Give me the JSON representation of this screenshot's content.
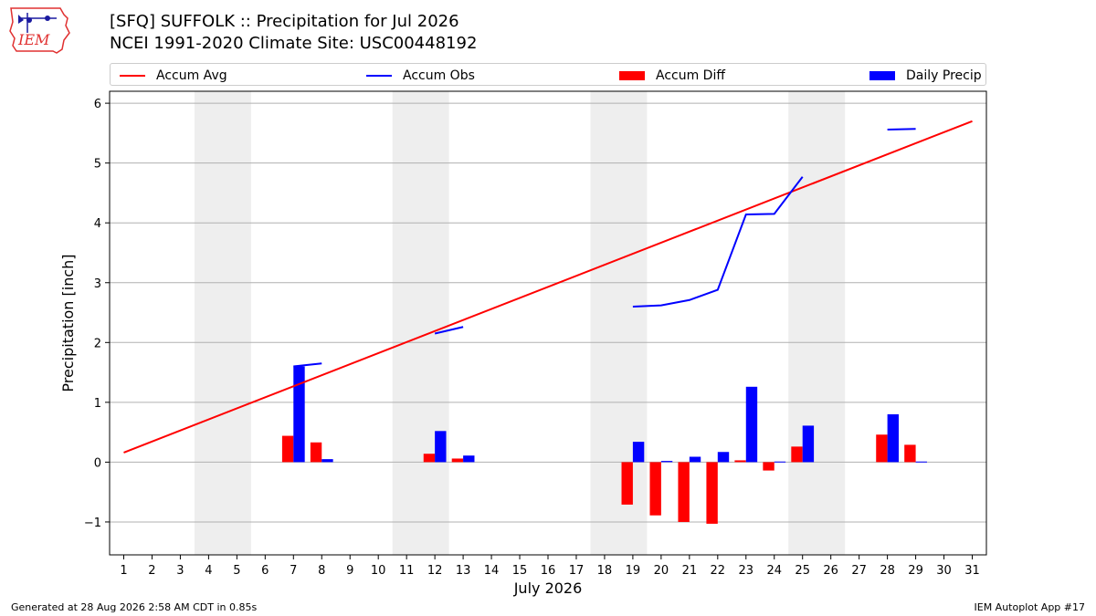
{
  "header": {
    "title_line1": "[SFQ] SUFFOLK :: Precipitation for Jul 2026",
    "title_line2": "NCEI 1991-2020 Climate Site: USC00448192",
    "logo_text": "IEM"
  },
  "footer": {
    "generated": "Generated at 28 Aug 2026 2:58 AM CDT in 0.85s",
    "app": "IEM Autoplot App #17"
  },
  "colors": {
    "avg": "#ff0000",
    "obs": "#0000ff",
    "diff": "#ff0000",
    "daily": "#0000ff",
    "weekend_shade": "#eeeeee",
    "grid": "#b0b0b0"
  },
  "chart_data": {
    "type": "bar",
    "xlabel": "July 2026",
    "ylabel": "Precipitation [inch]",
    "xlim": [
      0.5,
      31.5
    ],
    "ylim": [
      -1.55,
      6.2
    ],
    "yticks": [
      -1,
      0,
      1,
      2,
      3,
      4,
      5,
      6
    ],
    "ytick_labels": [
      "−1",
      "0",
      "1",
      "2",
      "3",
      "4",
      "5",
      "6"
    ],
    "xticks": [
      1,
      2,
      3,
      4,
      5,
      6,
      7,
      8,
      9,
      10,
      11,
      12,
      13,
      14,
      15,
      16,
      17,
      18,
      19,
      20,
      21,
      22,
      23,
      24,
      25,
      26,
      27,
      28,
      29,
      30,
      31
    ],
    "grid": "horizontal",
    "legend_placement": "top",
    "weekend_shading": [
      [
        4,
        5
      ],
      [
        11,
        12
      ],
      [
        18,
        19
      ],
      [
        25,
        26
      ]
    ],
    "legend": [
      "Accum Avg",
      "Accum Obs",
      "Accum Diff",
      "Daily Precip"
    ],
    "accum_avg": {
      "name": "Accum Avg",
      "x": [
        1,
        31
      ],
      "y": [
        0.16,
        5.7
      ]
    },
    "accum_obs": {
      "name": "Accum Obs",
      "segments": [
        {
          "x": [
            7,
            8
          ],
          "y": [
            1.6,
            1.65
          ]
        },
        {
          "x": [
            12,
            13
          ],
          "y": [
            2.15,
            2.26
          ]
        },
        {
          "x": [
            19,
            20,
            21,
            22,
            23,
            24,
            25
          ],
          "y": [
            2.6,
            2.62,
            2.71,
            2.88,
            4.14,
            4.15,
            4.77
          ]
        },
        {
          "x": [
            28,
            29
          ],
          "y": [
            5.56,
            5.57
          ]
        }
      ]
    },
    "accum_diff": {
      "name": "Accum Diff",
      "x": [
        7,
        8,
        12,
        13,
        19,
        20,
        21,
        22,
        23,
        24,
        25,
        28,
        29
      ],
      "values": [
        0.44,
        0.33,
        0.14,
        0.06,
        -0.71,
        -0.89,
        -1.0,
        -1.03,
        0.03,
        -0.14,
        0.26,
        0.46,
        0.29
      ]
    },
    "daily_precip": {
      "name": "Daily Precip",
      "x": [
        7,
        8,
        12,
        13,
        19,
        20,
        21,
        22,
        23,
        24,
        25,
        28,
        29
      ],
      "values": [
        1.6,
        0.05,
        0.52,
        0.11,
        0.34,
        0.02,
        0.09,
        0.17,
        1.26,
        0.01,
        0.61,
        0.8,
        0.01
      ]
    }
  }
}
